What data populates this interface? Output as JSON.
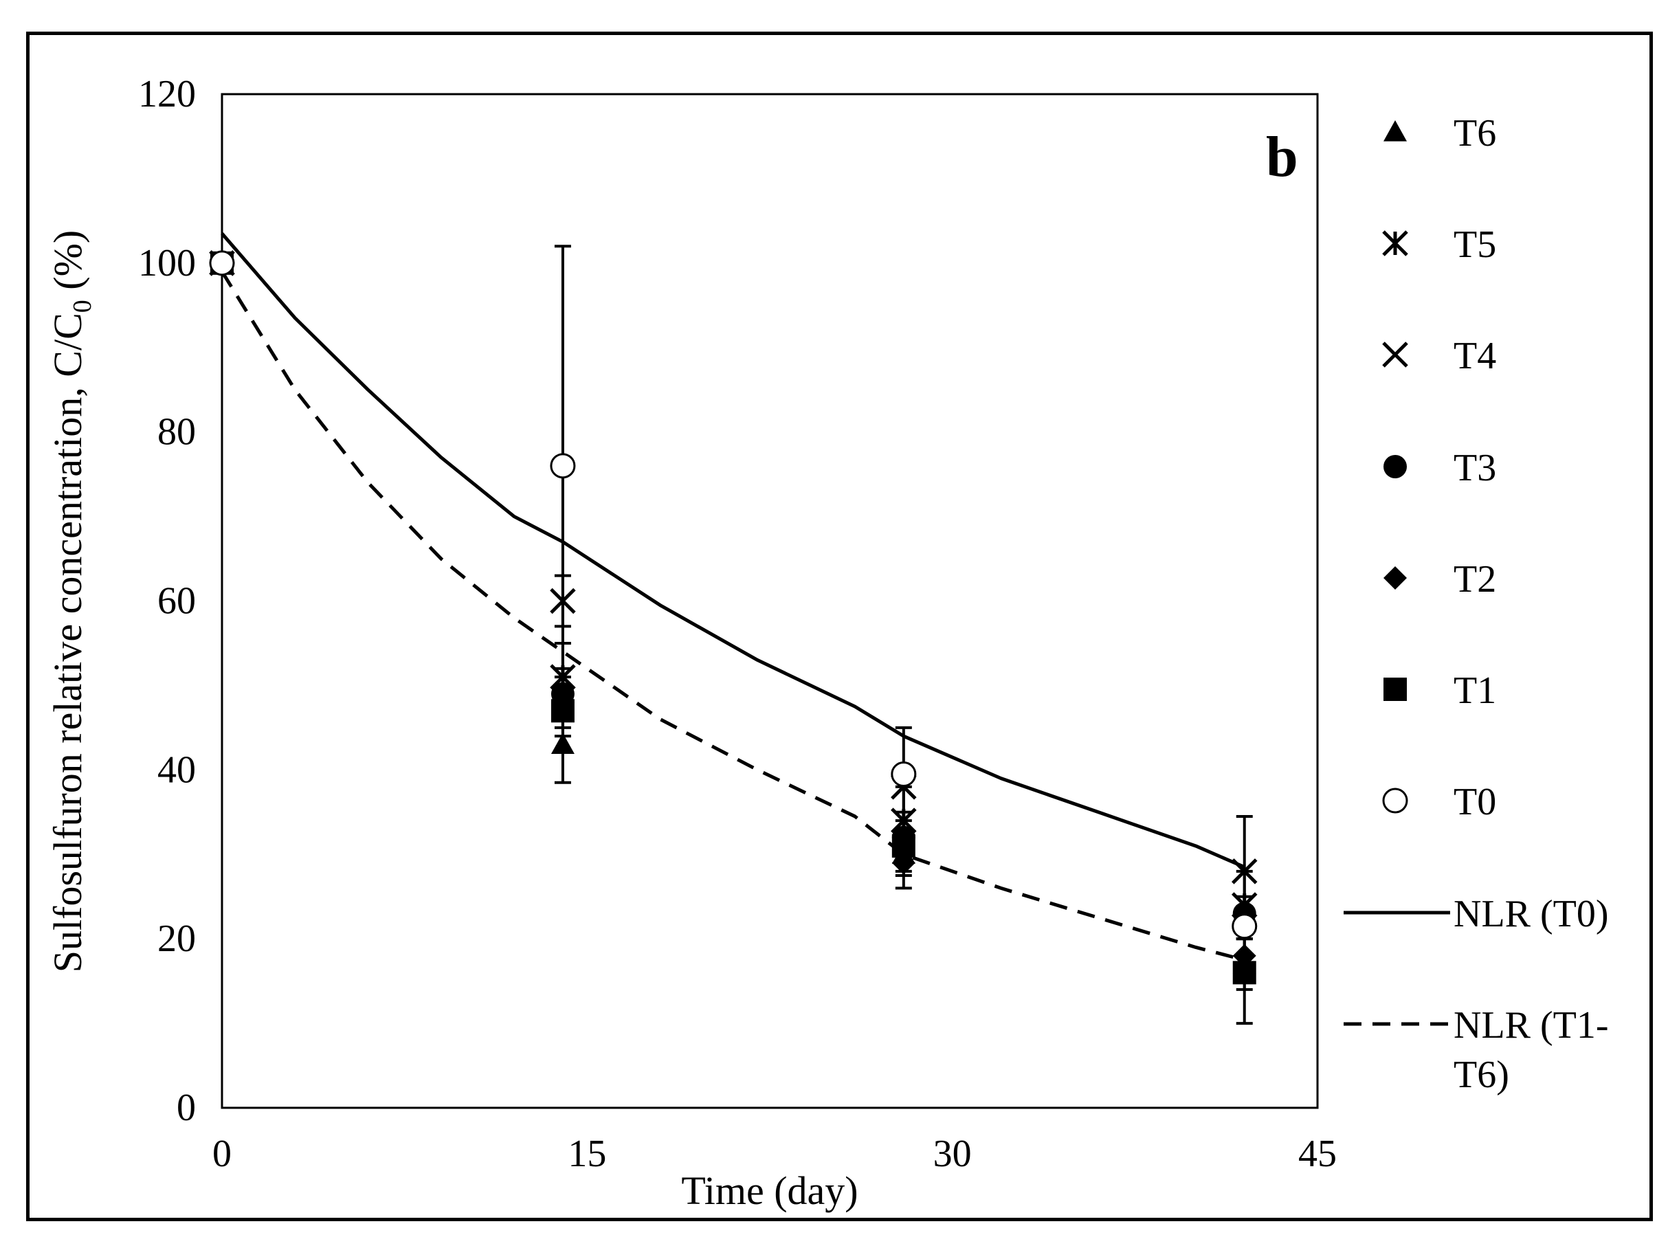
{
  "chart_data": {
    "type": "scatter",
    "panel_label": "b",
    "xlabel": "Time (day)",
    "ylabel_main": "Sulfosulfuron relative concentration, C/C",
    "ylabel_sub": "0",
    "ylabel_end": " (%)",
    "xlim": [
      0,
      45
    ],
    "ylim": [
      0,
      120
    ],
    "x_ticks": [
      "0",
      "15",
      "30",
      "45"
    ],
    "y_ticks": [
      "0",
      "20",
      "40",
      "60",
      "80",
      "100",
      "120"
    ],
    "series": [
      {
        "name": "T6",
        "marker": "triangle",
        "x": [
          0,
          14,
          28,
          42
        ],
        "y": [
          100,
          43,
          30,
          17
        ],
        "err": [
          0,
          4.5,
          2.5,
          3
        ]
      },
      {
        "name": "T5",
        "marker": "asterisk",
        "x": [
          0,
          14,
          28,
          42
        ],
        "y": [
          100,
          51,
          34,
          24
        ],
        "err": [
          0,
          4,
          4,
          4
        ]
      },
      {
        "name": "T4",
        "marker": "cross",
        "x": [
          0,
          14,
          28,
          42
        ],
        "y": [
          100,
          60,
          38,
          28
        ],
        "err": [
          0,
          3,
          7,
          6.5
        ]
      },
      {
        "name": "T3",
        "marker": "circle",
        "x": [
          0,
          14,
          28,
          42
        ],
        "y": [
          100,
          49,
          32,
          23
        ],
        "err": [
          0,
          3,
          3,
          2
        ]
      },
      {
        "name": "T2",
        "marker": "diamond",
        "x": [
          0,
          14,
          28,
          42
        ],
        "y": [
          100,
          48,
          29,
          18
        ],
        "err": [
          0,
          3,
          3,
          2
        ]
      },
      {
        "name": "T1",
        "marker": "square",
        "x": [
          0,
          14,
          28,
          42
        ],
        "y": [
          100,
          47,
          31,
          16
        ],
        "err": [
          0,
          3,
          3,
          6
        ]
      },
      {
        "name": "T0",
        "marker": "open-circle",
        "x": [
          0,
          14,
          28,
          42
        ],
        "y": [
          100,
          76,
          39.5,
          21.5
        ],
        "err": [
          0,
          26,
          0,
          0
        ]
      }
    ],
    "fits": [
      {
        "name": "NLR (T0)",
        "style": "solid",
        "x": [
          0,
          3,
          6,
          9,
          12,
          14,
          18,
          22,
          26,
          28,
          32,
          36,
          40,
          42
        ],
        "y": [
          103.5,
          93.5,
          85,
          77,
          70,
          67,
          59.5,
          53,
          47.5,
          44,
          39,
          35,
          31,
          28.5
        ]
      },
      {
        "name": "NLR (T1-T6)",
        "style": "dashed",
        "x": [
          0,
          3,
          6,
          9,
          12,
          14,
          18,
          22,
          26,
          28,
          32,
          36,
          40,
          42
        ],
        "y": [
          99,
          85,
          74,
          65,
          58,
          54,
          46,
          40,
          34.5,
          30,
          26,
          22.5,
          19,
          17.5
        ]
      }
    ],
    "legend": {
      "placement": "right",
      "entries": [
        "T6",
        "T5",
        "T4",
        "T3",
        "T2",
        "T1",
        "T0",
        "NLR (T0)",
        "NLR (T1-",
        "T6)"
      ]
    }
  }
}
